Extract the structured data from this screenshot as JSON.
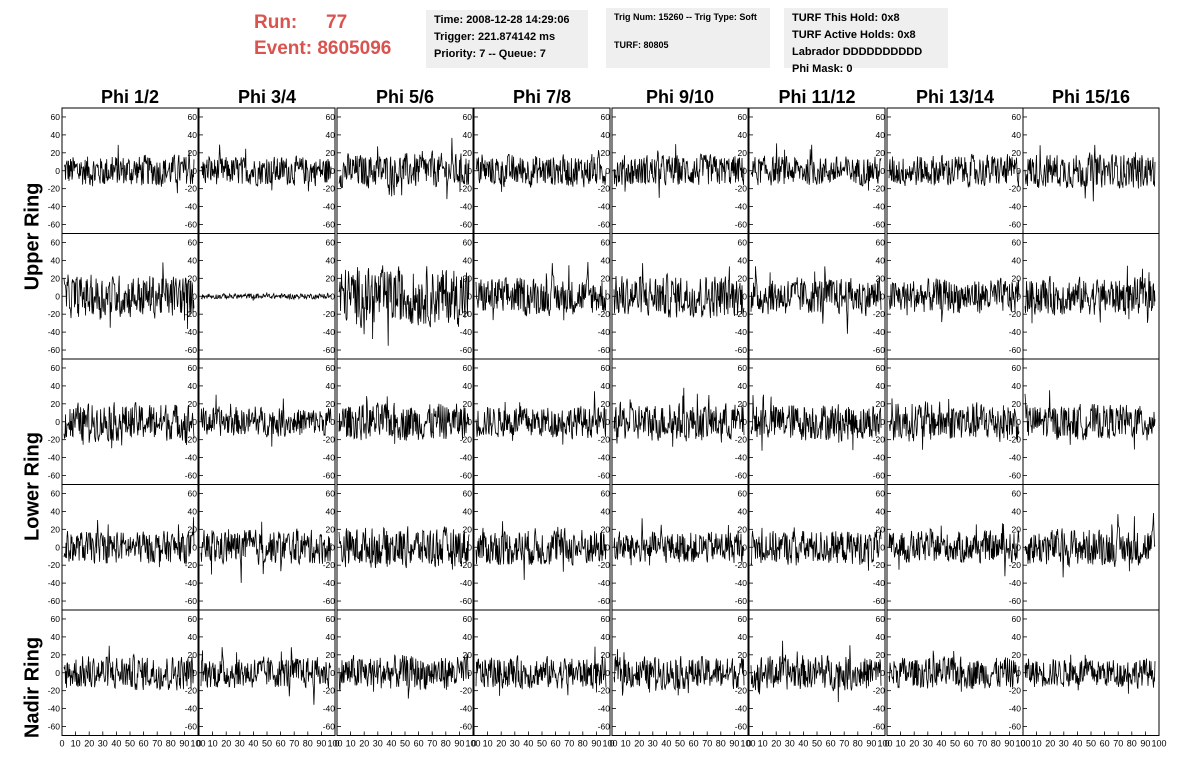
{
  "header": {
    "run_label": "Run:",
    "run_value": "77",
    "event_label": "Event:",
    "event_value": "8605096"
  },
  "info_time": {
    "time": "Time: 2008-12-28 14:29:06",
    "trigger": "Trigger: 221.874142 ms",
    "priority": "Priority: 7 -- Queue: 7"
  },
  "info_trig": {
    "trig": "Trig Num: 15260 -- Trig Type: Soft",
    "turf": "TURF: 80805"
  },
  "info_turf": {
    "this_hold": "TURF This Hold: 0x8",
    "active_holds": "TURF Active Holds: 0x8",
    "labrador": "Labrador DDDDDDDDDD",
    "phi_mask": "Phi Mask: 0"
  },
  "colors": {
    "accent": "#d9534f",
    "panel_bg": "#efefef",
    "trace": "#000000"
  },
  "chart_data": {
    "type": "line",
    "columns": [
      "Phi 1/2",
      "Phi 3/4",
      "Phi 5/6",
      "Phi 7/8",
      "Phi 9/10",
      "Phi 11/12",
      "Phi 13/14",
      "Phi 15/16"
    ],
    "rows": [
      "Upper Ring",
      "Lower Ring",
      "Nadir Ring"
    ],
    "subrows_per_panel": 5,
    "ylim": [
      -70,
      70
    ],
    "yticks": [
      -60,
      -40,
      -20,
      0,
      20,
      40,
      60
    ],
    "xlim": [
      0,
      100
    ],
    "xticks": [
      0,
      10,
      20,
      30,
      40,
      50,
      60,
      70,
      80,
      90,
      100
    ],
    "xtick_labels": [
      "0",
      "10",
      "20",
      "30",
      "40",
      "50",
      "60",
      "70",
      "80",
      "90",
      "100"
    ],
    "samples_per_trace": 260,
    "trace_amplitude": [
      [
        12,
        11,
        13,
        12,
        12,
        11,
        12,
        13
      ],
      [
        16,
        2,
        22,
        14,
        16,
        14,
        13,
        14
      ],
      [
        14,
        11,
        14,
        12,
        14,
        14,
        15,
        13
      ],
      [
        12,
        13,
        15,
        14,
        12,
        13,
        12,
        14
      ],
      [
        13,
        12,
        13,
        12,
        12,
        13,
        12,
        11
      ]
    ],
    "grid": false,
    "legend": "none"
  }
}
